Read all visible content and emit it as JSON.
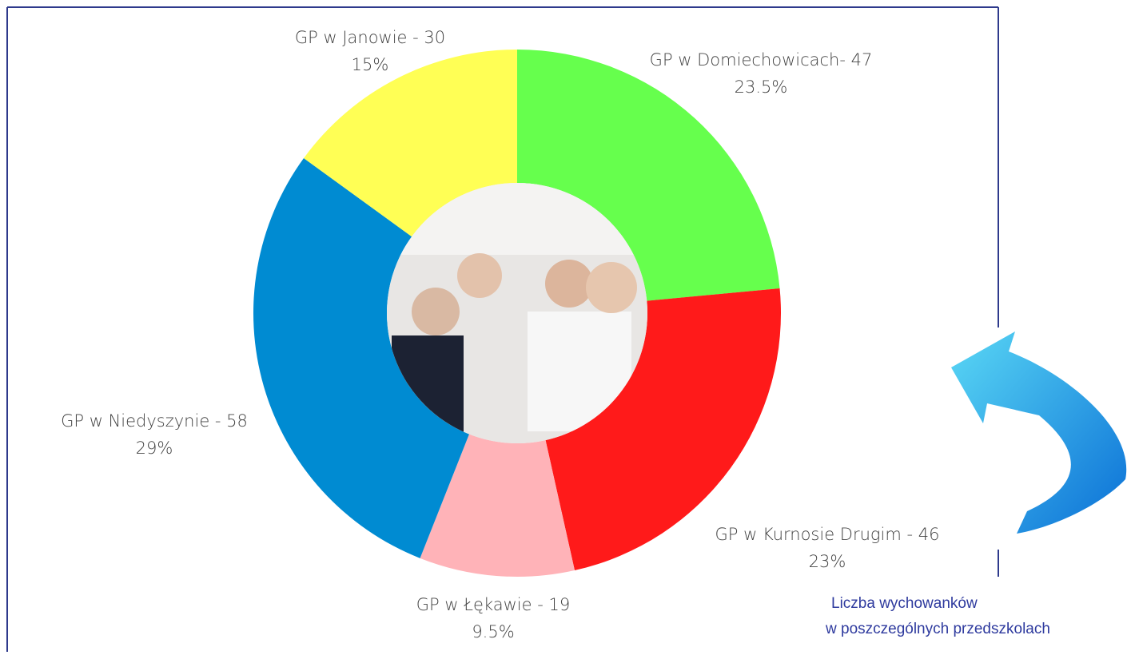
{
  "chart_data": {
    "type": "pie",
    "donut": true,
    "categories": [
      "GP w Domiechowicach- 47",
      "GP w Kurnosie Drugim - 46",
      "GP w Łękawie - 19",
      "GP w Niedyszynie - 58",
      "GP w Janowie - 30"
    ],
    "values": [
      23.5,
      23,
      9.5,
      29,
      15
    ],
    "value_labels": [
      "23.5%",
      "23%",
      "9.5%",
      "29%",
      "15%"
    ],
    "colors": [
      "#66ff4d",
      "#ff1a1a",
      "#ffb3b8",
      "#008bd2",
      "#ffff55"
    ]
  },
  "caption": [
    "Liczba wychowanków",
    "w poszczególnych przedszkolach"
  ]
}
